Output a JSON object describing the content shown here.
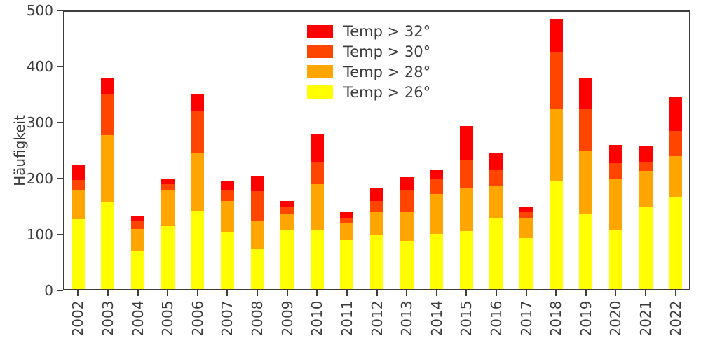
{
  "figure": {
    "background": "#ffffff",
    "axis_color": "#3d3d3d",
    "text_color": "#3d3d3d"
  },
  "chart_data": {
    "type": "bar",
    "stacked": true,
    "title": "",
    "xlabel": "",
    "ylabel": "Häufigkeit",
    "ylim": [
      0,
      500
    ],
    "yticks": [
      0,
      100,
      200,
      300,
      400,
      500
    ],
    "grid": false,
    "legend_position": "upper center-left, no frame",
    "categories": [
      "2002",
      "2003",
      "2004",
      "2005",
      "2006",
      "2007",
      "2008",
      "2009",
      "2010",
      "2011",
      "2012",
      "2013",
      "2014",
      "2015",
      "2016",
      "2017",
      "2018",
      "2019",
      "2020",
      "2021",
      "2022"
    ],
    "series": [
      {
        "name": "Temp > 32°",
        "color": "#ff0000",
        "values": [
          28,
          29,
          8,
          8,
          30,
          14,
          27,
          10,
          49,
          9,
          22,
          22,
          17,
          61,
          29,
          9,
          59,
          55,
          33,
          27,
          62
        ]
      },
      {
        "name": "Temp > 30°",
        "color": "#ff4500",
        "values": [
          17,
          73,
          14,
          11,
          75,
          20,
          52,
          12,
          40,
          10,
          20,
          40,
          26,
          50,
          29,
          10,
          100,
          74,
          29,
          17,
          45
        ]
      },
      {
        "name": "Temp > 28°",
        "color": "#ffa500",
        "values": [
          53,
          120,
          41,
          64,
          102,
          55,
          52,
          30,
          83,
          30,
          42,
          53,
          71,
          76,
          57,
          37,
          130,
          113,
          90,
          63,
          72
        ]
      },
      {
        "name": "Temp > 26°",
        "color": "#ffff00",
        "values": [
          125,
          155,
          67,
          113,
          140,
          103,
          71,
          105,
          105,
          88,
          96,
          85,
          99,
          104,
          127,
          91,
          193,
          135,
          106,
          148,
          165
        ]
      }
    ],
    "stack_order_bottom_to_top": [
      "Temp > 26°",
      "Temp > 28°",
      "Temp > 30°",
      "Temp > 32°"
    ],
    "totals": [
      223,
      377,
      130,
      196,
      347,
      192,
      202,
      157,
      277,
      137,
      180,
      200,
      213,
      291,
      242,
      147,
      482,
      377,
      258,
      255,
      344
    ]
  }
}
